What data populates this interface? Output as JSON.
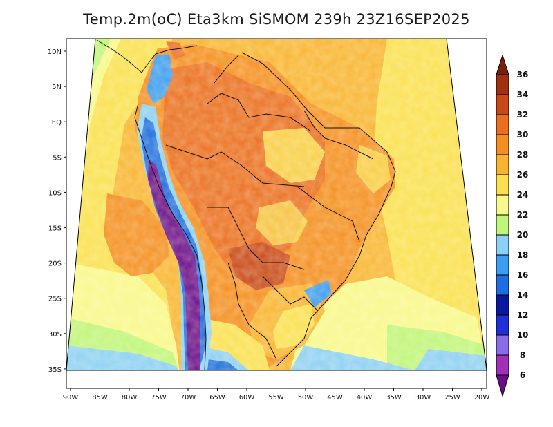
{
  "title": "Temp.2m(oC) Eta3km SiSMOM 239h 23Z16SEP2025",
  "lat_labels": [
    "10N",
    "5N",
    "EQ",
    "5S",
    "10S",
    "15S",
    "20S",
    "25S",
    "30S",
    "35S"
  ],
  "lon_labels": [
    "90W",
    "85W",
    "80W",
    "75W",
    "70W",
    "65W",
    "60W",
    "55W",
    "50W",
    "45W",
    "40W",
    "35W",
    "30W",
    "25W",
    "20W"
  ],
  "colorbar": {
    "labels": [
      "6",
      "8",
      "10",
      "12",
      "14",
      "16",
      "18",
      "20",
      "22",
      "24",
      "26",
      "28",
      "30",
      "32",
      "34",
      "36"
    ],
    "colors": [
      "#6a0d8a",
      "#a030b8",
      "#8a6ce8",
      "#2030d8",
      "#0a18a0",
      "#1e6ee0",
      "#3c9cf0",
      "#8cd0f6",
      "#bff57a",
      "#f8f88c",
      "#fae050",
      "#f8b430",
      "#f48e20",
      "#ea6e20",
      "#c84818",
      "#a03010",
      "#7a2008"
    ]
  }
}
